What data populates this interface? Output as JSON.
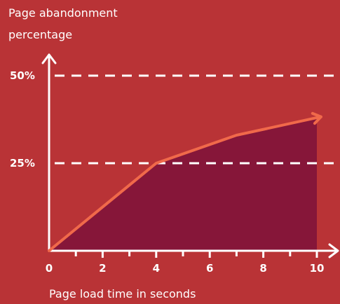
{
  "chart_data": {
    "type": "area",
    "title": "",
    "ylabel_lines": [
      "Page abandonment",
      "percentage"
    ],
    "xlabel": "Page load time in seconds",
    "xlim": [
      0,
      10
    ],
    "ylim": [
      0,
      50
    ],
    "x_ticks": [
      0,
      2,
      4,
      6,
      8,
      10
    ],
    "x_tick_labels": [
      "0",
      "2",
      "4",
      "6",
      "8",
      "10"
    ],
    "y_reference_lines": [
      {
        "value": 50,
        "label": "50%"
      },
      {
        "value": 25,
        "label": "25%"
      }
    ],
    "series": [
      {
        "x": [
          0,
          4,
          7,
          10
        ],
        "y": [
          0,
          25,
          33,
          38
        ]
      }
    ],
    "grid": "dashed reference lines at 25% and 50%",
    "legend": "none",
    "colors": {
      "background": "#b93336",
      "area_fill": "#861639",
      "line": "#f0694a",
      "axes": "#ffffff"
    }
  }
}
